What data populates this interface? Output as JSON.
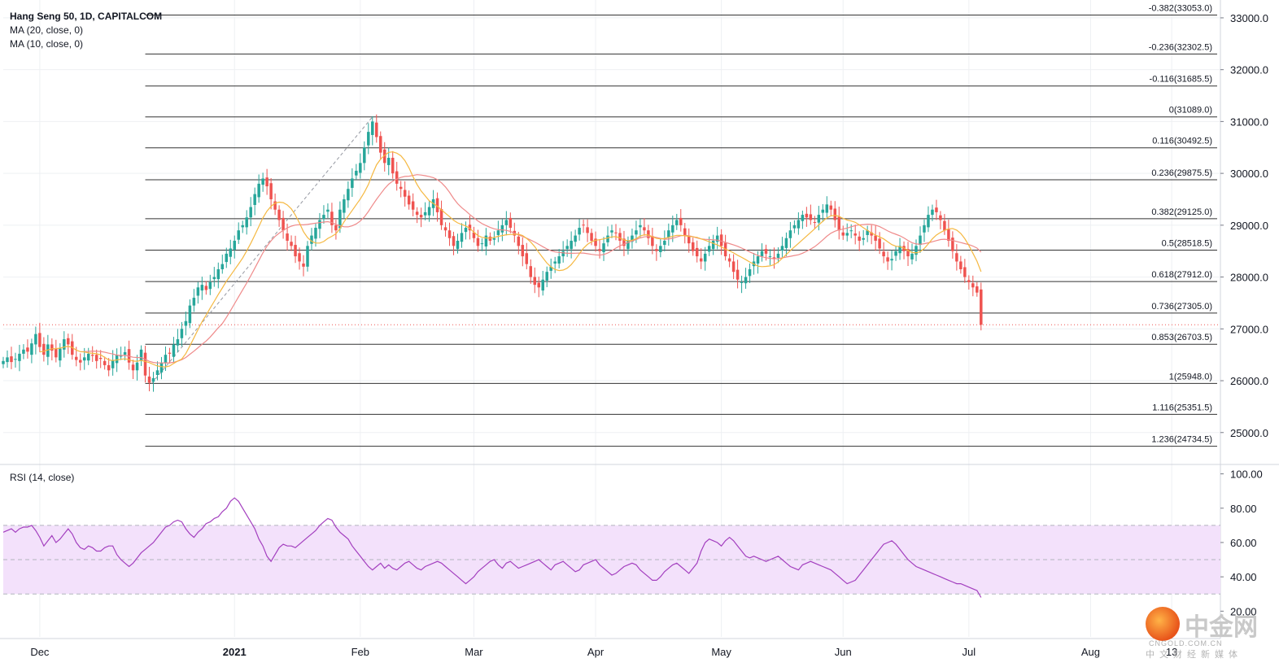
{
  "legend": {
    "title": "Hang Seng 50, 1D, CAPITALCOM",
    "ma20": "MA (20, close, 0)",
    "ma10": "MA (10, close, 0)",
    "rsi": "RSI (14, close)"
  },
  "colors": {
    "up": "#26a69a",
    "down": "#ef5350",
    "ma10": "#f5b841",
    "ma20": "#ef8a8a",
    "rsi": "#a33fbf",
    "rsi_band": "#f3e1fb",
    "fib": "#333333",
    "grid": "#eef0f3"
  },
  "watermark": {
    "cn": "中金网",
    "en": "CNGOLD.COM.CN",
    "sub": "中文财经新媒体"
  },
  "chart_data": {
    "type": "line",
    "price_axis": {
      "ylim": [
        24400,
        33250
      ],
      "ticks": [
        "33000.0",
        "32000.0",
        "31000.0",
        "30000.0",
        "29000.0",
        "28000.0",
        "27000.0",
        "26000.0",
        "25000.0"
      ],
      "tick_values": [
        33000,
        32000,
        31000,
        30000,
        29000,
        28000,
        27000,
        26000,
        25000
      ]
    },
    "rsi_axis": {
      "ylim": [
        5,
        105
      ],
      "ticks": [
        "100.00",
        "80.00",
        "60.00",
        "40.00",
        "20.00"
      ],
      "tick_values": [
        100,
        80,
        60,
        40,
        20
      ],
      "band": [
        30,
        70
      ],
      "mid": 50
    },
    "x_axis": {
      "labels": [
        "Dec",
        "2021",
        "Feb",
        "Mar",
        "Apr",
        "May",
        "Jun",
        "Jul",
        "Aug",
        "13"
      ],
      "label_day_index": [
        9,
        57,
        88,
        116,
        146,
        177,
        207,
        238,
        268,
        288
      ],
      "bold": [
        false,
        true,
        false,
        false,
        false,
        false,
        false,
        false,
        false,
        false
      ]
    },
    "fib_levels": [
      {
        "label": "-0.382(33053.0)",
        "value": 33053.0
      },
      {
        "label": "-0.236(32302.5)",
        "value": 32302.5
      },
      {
        "label": "-0.116(31685.5)",
        "value": 31685.5
      },
      {
        "label": "0(31089.0)",
        "value": 31089.0
      },
      {
        "label": "0.116(30492.5)",
        "value": 30492.5
      },
      {
        "label": "0.236(29875.5)",
        "value": 29875.5
      },
      {
        "label": "0.382(29125.0)",
        "value": 29125.0
      },
      {
        "label": "0.5(28518.5)",
        "value": 28518.5
      },
      {
        "label": "0.618(27912.0)",
        "value": 27912.0
      },
      {
        "label": "0.736(27305.0)",
        "value": 27305.0
      },
      {
        "label": "0.853(26703.5)",
        "value": 26703.5
      },
      {
        "label": "1(25948.0)",
        "value": 25948.0
      },
      {
        "label": "1.116(25351.5)",
        "value": 25351.5
      },
      {
        "label": "1.236(24734.5)",
        "value": 24734.5
      }
    ],
    "fib_start_day": 35,
    "last_close": 27080,
    "candles_start_day": 0,
    "closes": [
      26380,
      26450,
      26360,
      26420,
      26520,
      26600,
      26560,
      26720,
      26900,
      26650,
      26500,
      26700,
      26580,
      26450,
      26620,
      26800,
      26700,
      26500,
      26400,
      26350,
      26450,
      26520,
      26480,
      26380,
      26420,
      26300,
      26200,
      26400,
      26500,
      26480,
      26550,
      26350,
      26200,
      26350,
      26600,
      26100,
      25960,
      26050,
      26200,
      26350,
      26500,
      26520,
      26700,
      26800,
      27000,
      27150,
      27450,
      27600,
      27800,
      27850,
      27750,
      27900,
      28000,
      28150,
      28250,
      28450,
      28550,
      28700,
      28900,
      29000,
      29150,
      29350,
      29600,
      29800,
      29900,
      29750,
      29500,
      29300,
      29100,
      28900,
      28700,
      28600,
      28400,
      28300,
      28200,
      28600,
      28800,
      28950,
      29100,
      29200,
      29300,
      29000,
      28900,
      29300,
      29500,
      29700,
      29900,
      30050,
      30200,
      30500,
      30800,
      31000,
      30700,
      30400,
      30200,
      30300,
      30000,
      29800,
      29700,
      29550,
      29400,
      29300,
      29200,
      29150,
      29250,
      29350,
      29500,
      29250,
      29000,
      28900,
      28750,
      28600,
      28700,
      28850,
      28950,
      28900,
      28750,
      28600,
      28650,
      28800,
      28700,
      28750,
      28900,
      29000,
      29100,
      28950,
      28800,
      28600,
      28400,
      28250,
      28000,
      27850,
      27800,
      27950,
      28100,
      28200,
      28300,
      28400,
      28500,
      28600,
      28700,
      28800,
      28950,
      29000,
      28850,
      28700,
      28600,
      28500,
      28650,
      28800,
      28900,
      28850,
      28700,
      28600,
      28700,
      28800,
      28900,
      29000,
      28900,
      28750,
      28600,
      28500,
      28600,
      28700,
      28900,
      29000,
      29100,
      29000,
      28800,
      28650,
      28500,
      28400,
      28300,
      28450,
      28600,
      28700,
      28800,
      28600,
      28400,
      28300,
      28100,
      27950,
      27900,
      28000,
      28150,
      28300,
      28400,
      28500,
      28450,
      28400,
      28350,
      28450,
      28600,
      28750,
      28900,
      29000,
      29100,
      29200,
      29150,
      29100,
      29050,
      29200,
      29300,
      29400,
      29300,
      29100,
      28900,
      28800,
      28850,
      28900,
      28800,
      28700,
      28750,
      28900,
      28800,
      28700,
      28550,
      28400,
      28300,
      28350,
      28500,
      28600,
      28500,
      28400,
      28450,
      28600,
      28800,
      29000,
      29200,
      29300,
      29250,
      29100,
      28900,
      28700,
      28500,
      28300,
      28150,
      28000,
      27900,
      27800,
      27700,
      27080
    ],
    "rsi": [
      66,
      67,
      68,
      66,
      68,
      69,
      69,
      70,
      67,
      63,
      58,
      61,
      64,
      60,
      62,
      65,
      68,
      65,
      60,
      57,
      56,
      58,
      57,
      55,
      55,
      57,
      58,
      58,
      53,
      50,
      48,
      46,
      48,
      51,
      54,
      56,
      58,
      60,
      63,
      66,
      69,
      70,
      72,
      73,
      72,
      68,
      65,
      63,
      66,
      68,
      71,
      72,
      74,
      75,
      78,
      80,
      84,
      86,
      84,
      80,
      76,
      72,
      68,
      62,
      58,
      52,
      49,
      53,
      57,
      59,
      58,
      58,
      57,
      59,
      61,
      63,
      65,
      67,
      70,
      72,
      74,
      73,
      69,
      66,
      64,
      62,
      58,
      55,
      52,
      49,
      46,
      44,
      46,
      48,
      45,
      47,
      45,
      44,
      46,
      48,
      49,
      47,
      45,
      44,
      46,
      47,
      48,
      49,
      48,
      46,
      44,
      42,
      40,
      38,
      36,
      38,
      40,
      43,
      45,
      47,
      49,
      50,
      47,
      45,
      48,
      49,
      47,
      45,
      46,
      47,
      48,
      49,
      50,
      48,
      46,
      44,
      47,
      48,
      49,
      47,
      45,
      43,
      44,
      47,
      48,
      49,
      50,
      47,
      45,
      43,
      41,
      42,
      44,
      46,
      47,
      48,
      47,
      44,
      42,
      40,
      38,
      38,
      40,
      43,
      45,
      47,
      48,
      46,
      44,
      42,
      45,
      48,
      55,
      60,
      62,
      61,
      60,
      58,
      61,
      63,
      61,
      58,
      55,
      52,
      51,
      52,
      51,
      50,
      49,
      50,
      51,
      52,
      50,
      48,
      46,
      45,
      44,
      47,
      48,
      49,
      48,
      47,
      46,
      45,
      44,
      42,
      40,
      38,
      36,
      37,
      38,
      41,
      44,
      47,
      50,
      53,
      56,
      59,
      60,
      61,
      59,
      56,
      53,
      50,
      48,
      46,
      45,
      44,
      43,
      42,
      41,
      40,
      39,
      38,
      37,
      36,
      36,
      35,
      34,
      33,
      32,
      28
    ]
  }
}
